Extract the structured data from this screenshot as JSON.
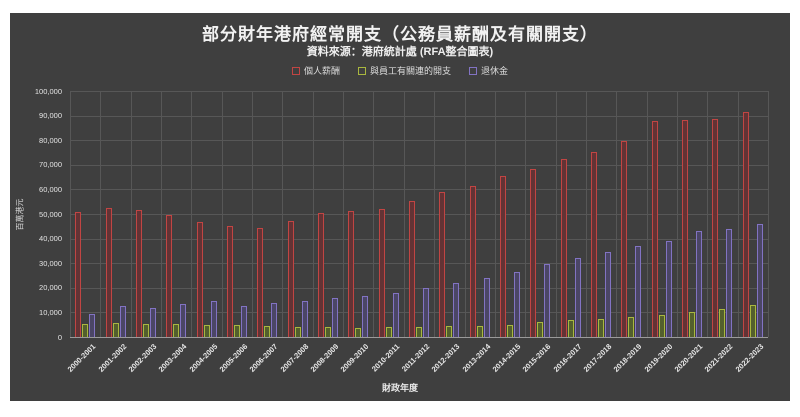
{
  "chart": {
    "title": "部分財年港府經常開支（公務員薪酬及有關開支）",
    "subtitle": "資料來源：港府統計處 (RFA整合圖表)",
    "xlabel": "財政年度",
    "ylabel": "百萬港元"
  },
  "colors": {
    "page_background": "#ffffff",
    "panel_background": "#3f3f3f",
    "gridline": "#575757",
    "baseline": "#9a9a9a",
    "text": "#f2f2f2"
  },
  "chart_data": {
    "type": "bar",
    "title": "部分財年港府經常開支（公務員薪酬及有關開支）",
    "subtitle": "資料來源：港府統計處 (RFA整合圖表)",
    "xlabel": "財政年度",
    "ylabel": "百萬港元",
    "ylim": [
      0,
      100000
    ],
    "ytick_step": 10000,
    "grid": true,
    "legend_position": "top",
    "categories": [
      "2000-2001",
      "2001-2002",
      "2002-2003",
      "2003-2004",
      "2004-2005",
      "2005-2006",
      "2006-2007",
      "2007-2008",
      "2008-2009",
      "2009-2010",
      "2010-2011",
      "2011-2012",
      "2012-2013",
      "2013-2014",
      "2014-2015",
      "2015-2016",
      "2016-2017",
      "2017-2018",
      "2018-2019",
      "2019-2020",
      "2020-2021",
      "2021-2022",
      "2022-2023"
    ],
    "series": [
      {
        "id": "personal-emoluments",
        "name": "個人薪酬",
        "border": "#c14543",
        "fill": "#633335",
        "values": [
          51000,
          52400,
          51500,
          49600,
          46900,
          45000,
          44500,
          47300,
          50300,
          51200,
          52000,
          55300,
          59000,
          61500,
          65300,
          68300,
          72300,
          75100,
          79800,
          87900,
          88300,
          88700,
          91500
        ]
      },
      {
        "id": "staff-related-expenses",
        "name": "與員工有關連的開支",
        "border": "#a9b73f",
        "fill": "#535f2d",
        "values": [
          5400,
          5600,
          5300,
          5200,
          5000,
          4800,
          4600,
          4200,
          3900,
          3800,
          3900,
          4100,
          4300,
          4500,
          5000,
          6200,
          6900,
          7200,
          8000,
          8900,
          10000,
          11300,
          13000
        ]
      },
      {
        "id": "pensions",
        "name": "退休金",
        "border": "#8273c3",
        "fill": "#4b4666",
        "values": [
          9200,
          12600,
          11700,
          13600,
          14800,
          12700,
          13900,
          14600,
          15700,
          16700,
          18000,
          19800,
          21800,
          23900,
          26500,
          29600,
          32200,
          34700,
          37000,
          39000,
          43200,
          43900,
          45800
        ]
      }
    ]
  }
}
